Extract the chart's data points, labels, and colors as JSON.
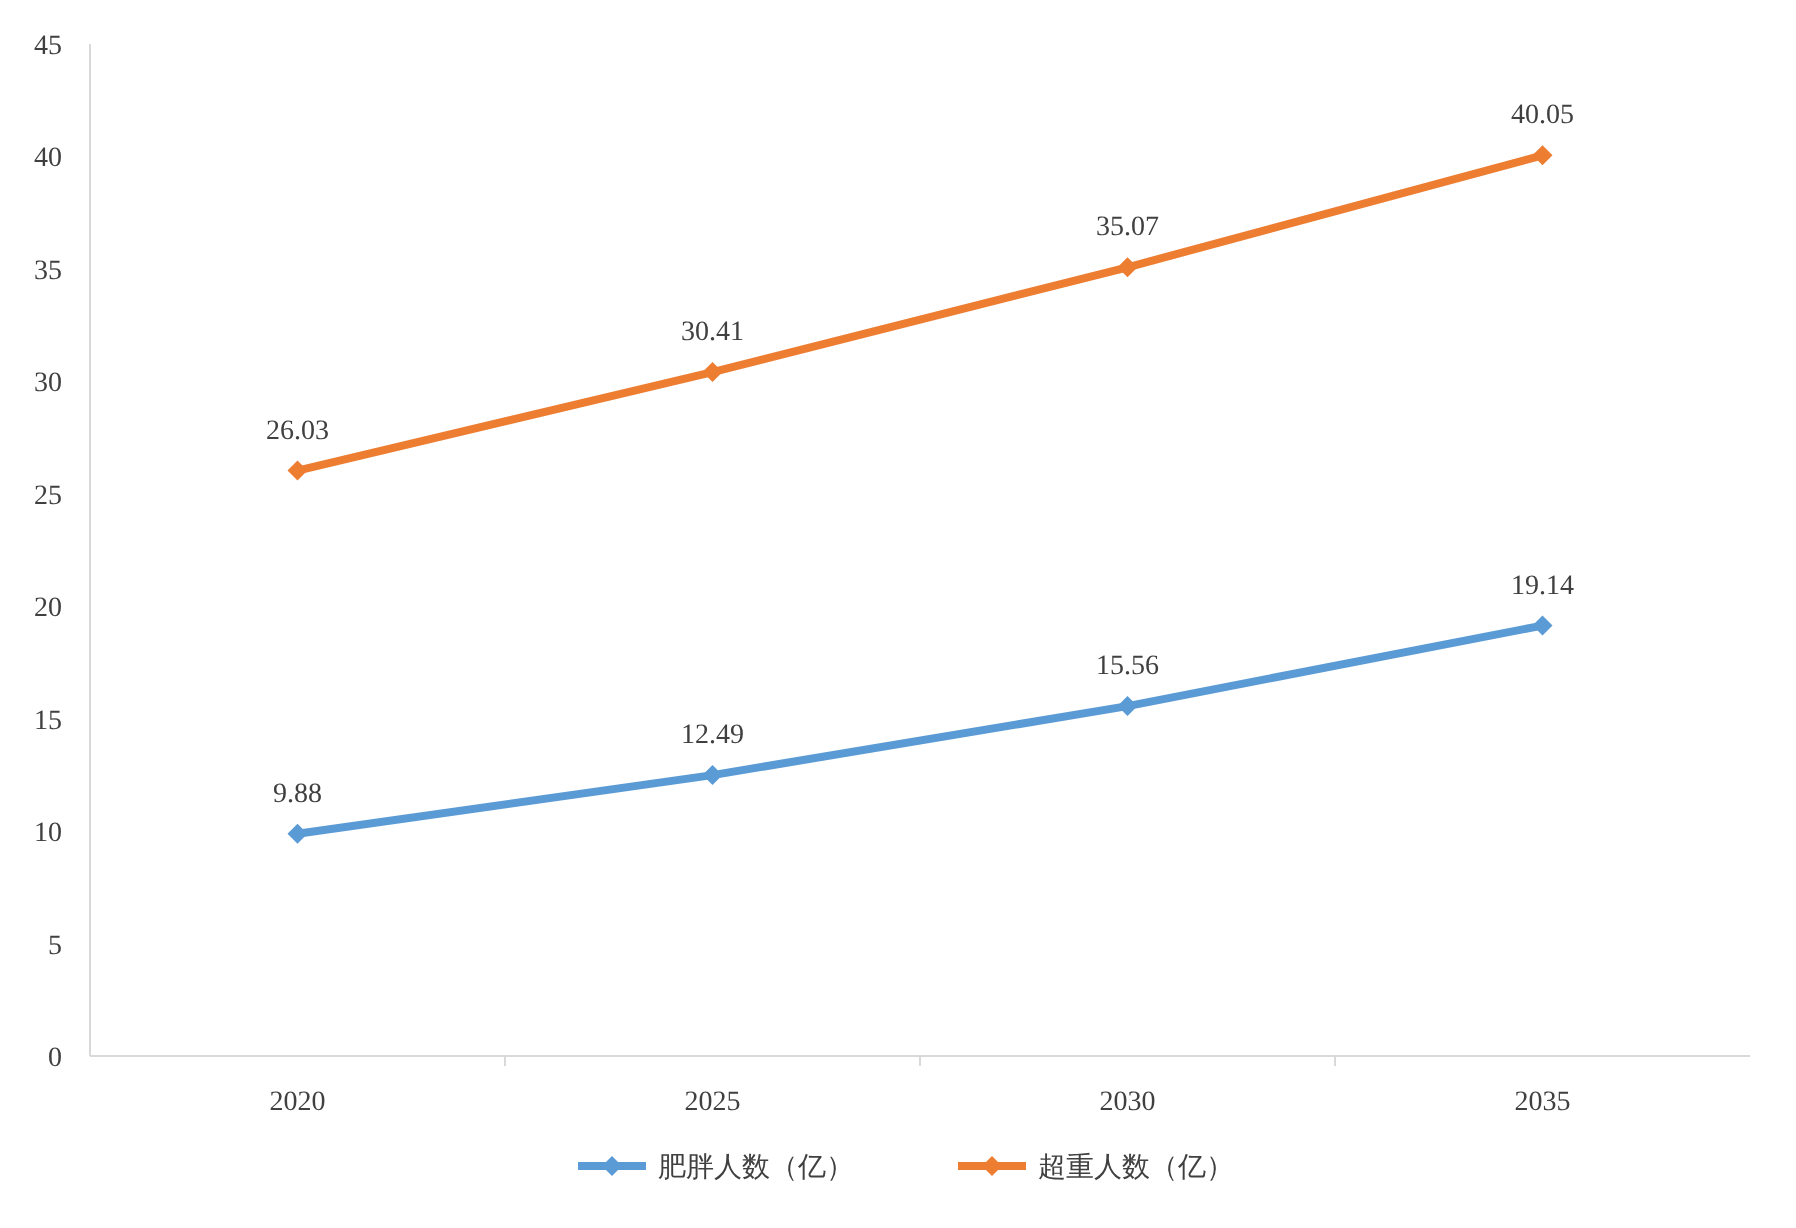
{
  "chart_data": {
    "type": "line",
    "categories": [
      "2020",
      "2025",
      "2030",
      "2035"
    ],
    "series": [
      {
        "name": "肥胖人数（亿）",
        "color": "#5b9bd5",
        "values": [
          9.88,
          12.49,
          15.56,
          19.14
        ]
      },
      {
        "name": "超重人数（亿）",
        "color": "#ed7d31",
        "values": [
          26.03,
          30.41,
          35.07,
          40.05
        ]
      }
    ],
    "ylim": [
      0,
      45
    ],
    "yticks": [
      0,
      5,
      10,
      15,
      20,
      25,
      30,
      35,
      40,
      45
    ],
    "data_labels": true,
    "legend": "bottom",
    "marker": "diamond"
  }
}
